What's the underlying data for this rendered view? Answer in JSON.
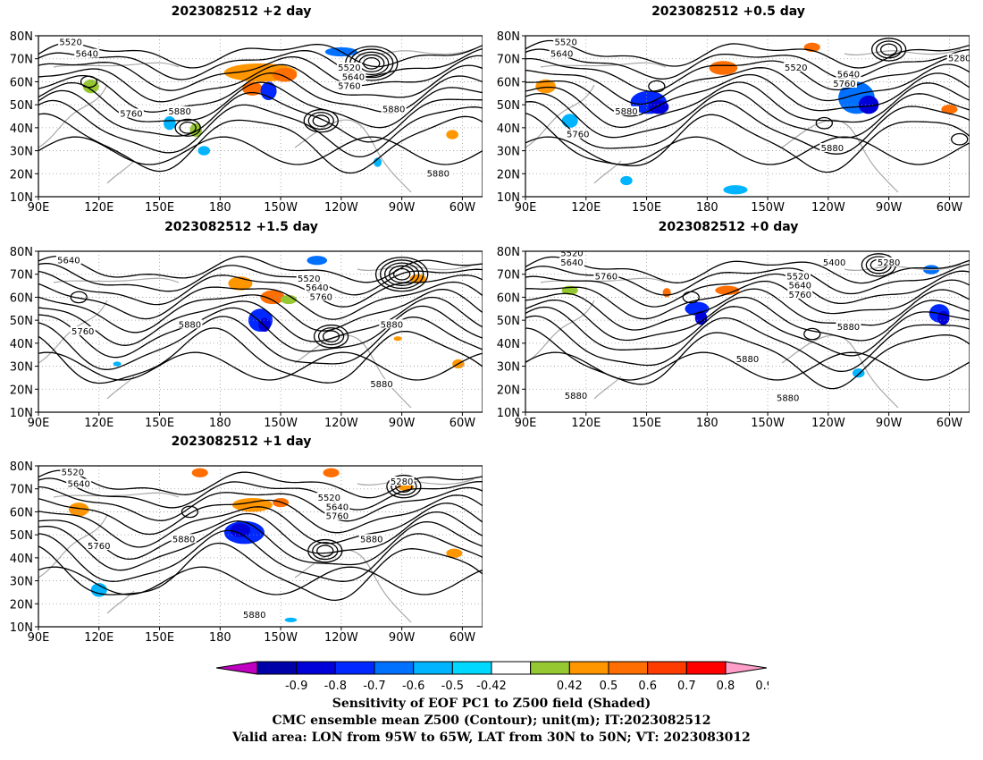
{
  "panels": [
    {
      "title": "2023082512 +2 day",
      "contours": [
        "5520",
        "5640",
        "5760",
        "5880",
        "5520",
        "5640",
        "5760",
        "5880",
        "5880"
      ]
    },
    {
      "title": "2023082512 +0.5 day",
      "contours": [
        "5520",
        "5640",
        "5880",
        "5760",
        "5520",
        "5640",
        "5760",
        "5280",
        "5880"
      ]
    },
    {
      "title": "2023082512 +1.5 day",
      "contours": [
        "5640",
        "5760",
        "5880",
        "5520",
        "5640",
        "5760",
        "5880",
        "5880"
      ]
    },
    {
      "title": "2023082512 +0 day",
      "contours": [
        "5520",
        "5640",
        "5760",
        "5400",
        "5280",
        "5520",
        "5640",
        "5760",
        "5880",
        "5880",
        "5880",
        "5880"
      ]
    },
    {
      "title": "2023082512 +1 day",
      "contours": [
        "5520",
        "5640",
        "5760",
        "5880",
        "5520",
        "5640",
        "5760",
        "5280",
        "5880",
        "5880"
      ]
    }
  ],
  "lat_labels": [
    "80N",
    "70N",
    "60N",
    "50N",
    "40N",
    "30N",
    "20N",
    "10N"
  ],
  "lon_labels": [
    "90E",
    "120E",
    "150E",
    "180",
    "150W",
    "120W",
    "90W",
    "60W"
  ],
  "colorbar": {
    "labels": [
      "-0.9",
      "-0.8",
      "-0.7",
      "-0.6",
      "-0.5",
      "-0.42",
      "0.42",
      "0.5",
      "0.6",
      "0.7",
      "0.8",
      "0.9"
    ],
    "colors": [
      "#c000c0",
      "#0000a8",
      "#0000d8",
      "#0028ff",
      "#0070ff",
      "#00b4ff",
      "#00d8ff",
      "#ffffff",
      "#96c832",
      "#ff9600",
      "#ff6e00",
      "#ff3c00",
      "#ff0000",
      "#ff9ec8"
    ]
  },
  "captions": {
    "line1": "Sensitivity of EOF PC1 to Z500 field (Shaded)",
    "line2": "CMC ensemble mean Z500 (Contour); unit(m); IT:2023082512",
    "line3": "Valid area: LON from 95W to 65W, LAT from 30N to 50N; VT: 2023083012"
  }
}
